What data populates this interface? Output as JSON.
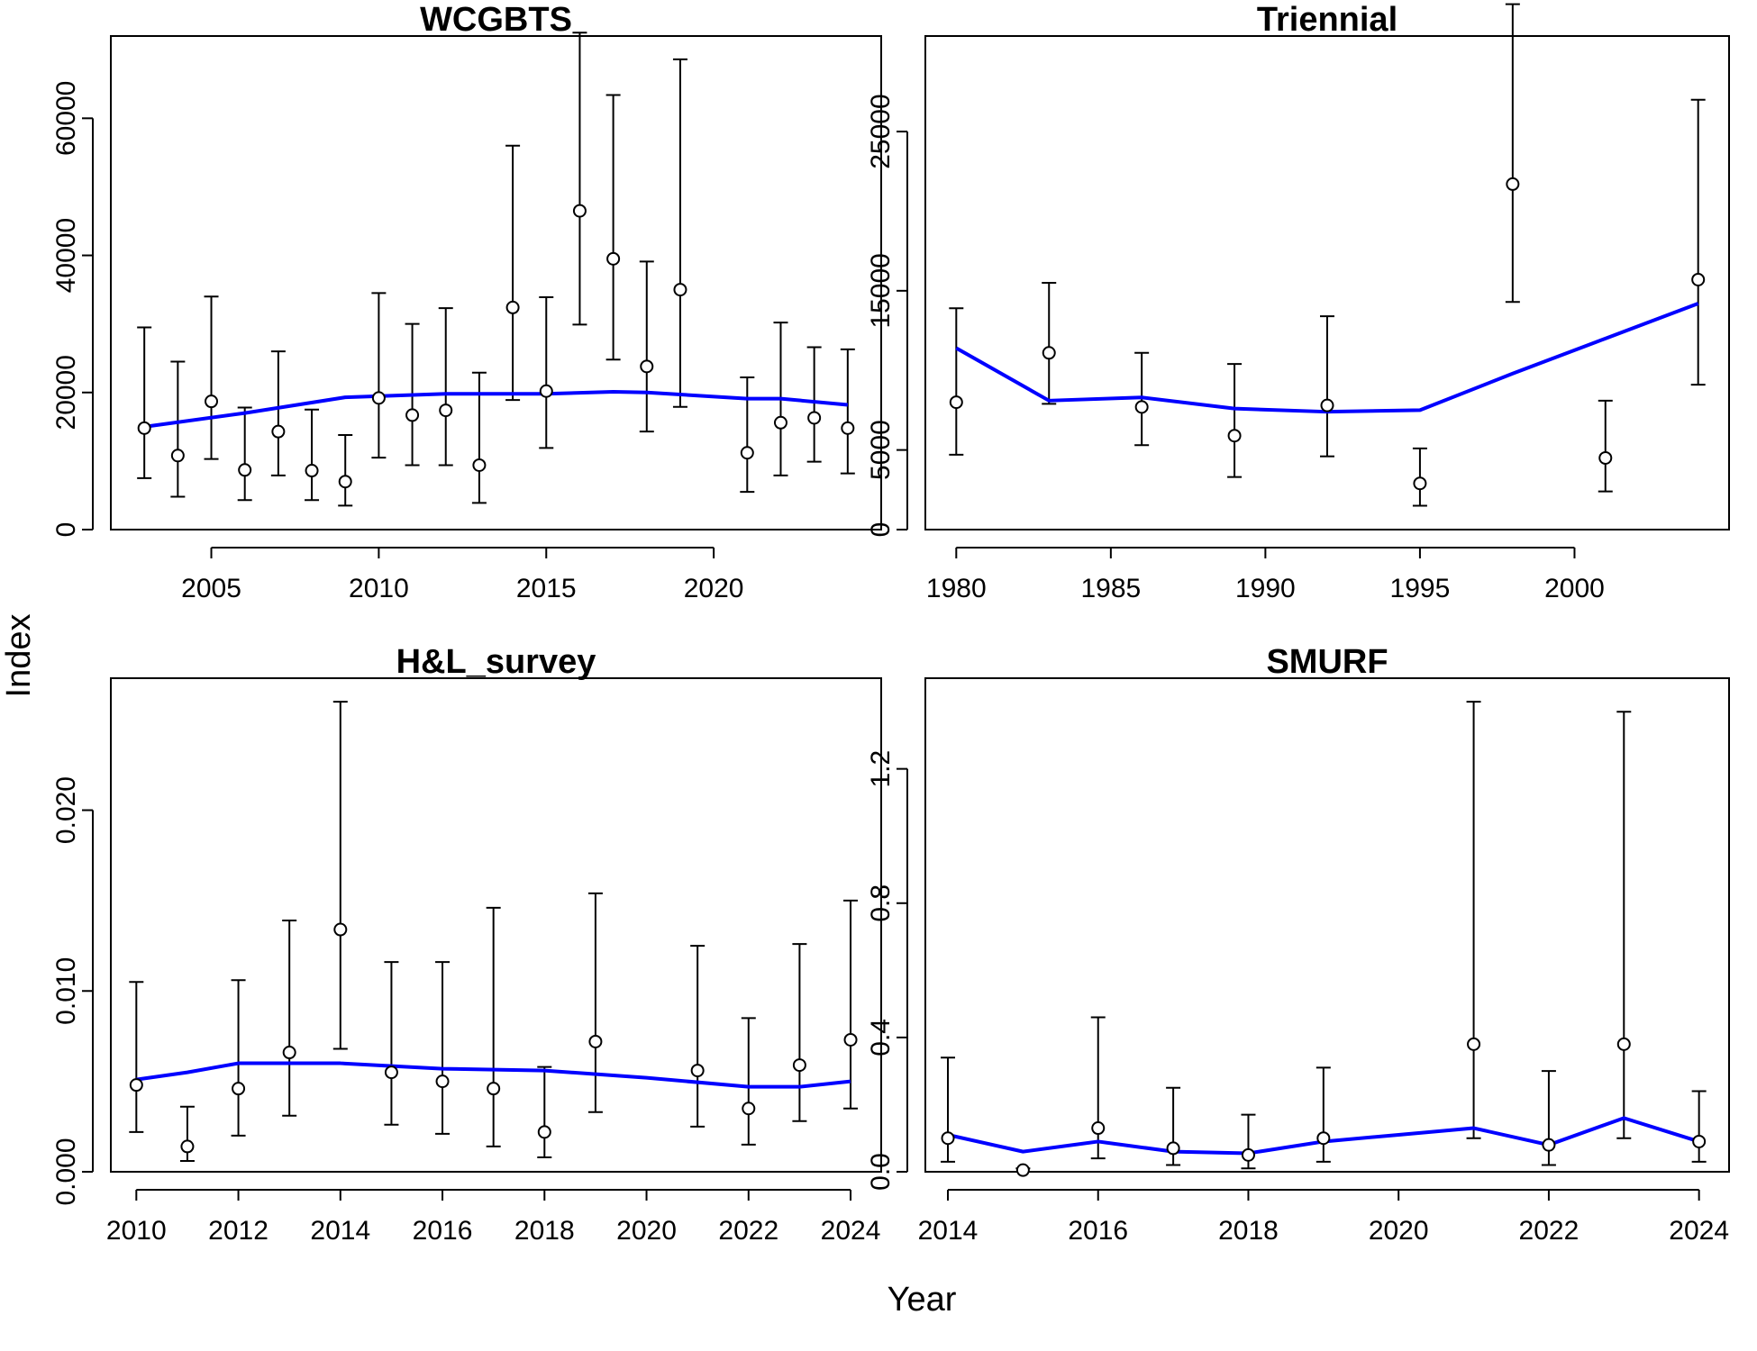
{
  "figure": {
    "xlabel": "Year",
    "ylabel": "Index"
  },
  "chart_data": [
    {
      "type": "scatter",
      "title": "WCGBTS",
      "x_ticks": [
        2005,
        2010,
        2015,
        2020
      ],
      "y_ticks": [
        0,
        20000,
        40000,
        60000
      ],
      "y_tick_labels": [
        "0",
        "20000",
        "40000",
        "60000"
      ],
      "xlim": [
        2002,
        2025
      ],
      "ylim": [
        0,
        72000
      ],
      "points": [
        {
          "x": 2003,
          "y": 14800,
          "lo": 7500,
          "hi": 29500
        },
        {
          "x": 2004,
          "y": 10800,
          "lo": 4800,
          "hi": 24500
        },
        {
          "x": 2005,
          "y": 18700,
          "lo": 10300,
          "hi": 34000
        },
        {
          "x": 2006,
          "y": 8700,
          "lo": 4300,
          "hi": 17800
        },
        {
          "x": 2007,
          "y": 14300,
          "lo": 7900,
          "hi": 26000
        },
        {
          "x": 2008,
          "y": 8600,
          "lo": 4300,
          "hi": 17500
        },
        {
          "x": 2009,
          "y": 7000,
          "lo": 3500,
          "hi": 13800
        },
        {
          "x": 2010,
          "y": 19200,
          "lo": 10500,
          "hi": 34500
        },
        {
          "x": 2011,
          "y": 16700,
          "lo": 9400,
          "hi": 30000
        },
        {
          "x": 2012,
          "y": 17400,
          "lo": 9400,
          "hi": 32300
        },
        {
          "x": 2013,
          "y": 9400,
          "lo": 3900,
          "hi": 22900
        },
        {
          "x": 2014,
          "y": 32400,
          "lo": 18900,
          "hi": 56000
        },
        {
          "x": 2015,
          "y": 20200,
          "lo": 11900,
          "hi": 33900
        },
        {
          "x": 2016,
          "y": 46500,
          "lo": 29900,
          "hi": 72500
        },
        {
          "x": 2017,
          "y": 39500,
          "lo": 24800,
          "hi": 63400
        },
        {
          "x": 2018,
          "y": 23800,
          "lo": 14300,
          "hi": 39100
        },
        {
          "x": 2019,
          "y": 35000,
          "lo": 17900,
          "hi": 68600
        },
        {
          "x": 2021,
          "y": 11200,
          "lo": 5500,
          "hi": 22200
        },
        {
          "x": 2022,
          "y": 15600,
          "lo": 7900,
          "hi": 30200
        },
        {
          "x": 2023,
          "y": 16300,
          "lo": 9900,
          "hi": 26600
        },
        {
          "x": 2024,
          "y": 14800,
          "lo": 8200,
          "hi": 26300
        }
      ],
      "fit": {
        "x": [
          2003,
          2006,
          2009,
          2012,
          2015,
          2017,
          2018,
          2021,
          2022,
          2024
        ],
        "y": [
          15000,
          17000,
          19300,
          19800,
          19800,
          20100,
          20000,
          19100,
          19100,
          18200
        ]
      }
    },
    {
      "type": "scatter",
      "title": "Triennial",
      "x_ticks": [
        1980,
        1985,
        1990,
        1995,
        2000
      ],
      "y_ticks": [
        0,
        5000,
        15000,
        25000
      ],
      "y_tick_labels": [
        "0",
        "5000",
        "15000",
        "25000"
      ],
      "xlim": [
        1979,
        2005
      ],
      "ylim": [
        0,
        31000
      ],
      "points": [
        {
          "x": 1980,
          "y": 8000,
          "lo": 4700,
          "hi": 13900
        },
        {
          "x": 1983,
          "y": 11100,
          "lo": 7900,
          "hi": 15500
        },
        {
          "x": 1986,
          "y": 7700,
          "lo": 5300,
          "hi": 11100
        },
        {
          "x": 1989,
          "y": 5900,
          "lo": 3300,
          "hi": 10400
        },
        {
          "x": 1992,
          "y": 7800,
          "lo": 4600,
          "hi": 13400
        },
        {
          "x": 1995,
          "y": 2900,
          "lo": 1500,
          "hi": 5100
        },
        {
          "x": 1998,
          "y": 21700,
          "lo": 14300,
          "hi": 33000
        },
        {
          "x": 2001,
          "y": 4500,
          "lo": 2400,
          "hi": 8100
        },
        {
          "x": 2004,
          "y": 15700,
          "lo": 9100,
          "hi": 27000
        }
      ],
      "fit": {
        "x": [
          1980,
          1983,
          1986,
          1989,
          1992,
          1995,
          1998,
          2001,
          2004
        ],
        "y": [
          11400,
          8100,
          8300,
          7600,
          7400,
          7500,
          9800,
          12000,
          14200
        ]
      }
    },
    {
      "type": "scatter",
      "title": "H&L_survey",
      "x_ticks": [
        2010,
        2012,
        2014,
        2016,
        2018,
        2020,
        2022,
        2024
      ],
      "y_ticks": [
        0,
        0.01,
        0.02
      ],
      "y_tick_labels": [
        "0.000",
        "0.010",
        "0.020"
      ],
      "xlim": [
        2009.5,
        2024.6
      ],
      "ylim": [
        0,
        0.0273
      ],
      "points": [
        {
          "x": 2010,
          "y": 0.0048,
          "lo": 0.0022,
          "hi": 0.0105
        },
        {
          "x": 2011,
          "y": 0.0014,
          "lo": 0.0006,
          "hi": 0.0036
        },
        {
          "x": 2012,
          "y": 0.0046,
          "lo": 0.002,
          "hi": 0.0106
        },
        {
          "x": 2013,
          "y": 0.0066,
          "lo": 0.0031,
          "hi": 0.0139
        },
        {
          "x": 2014,
          "y": 0.0134,
          "lo": 0.0068,
          "hi": 0.026
        },
        {
          "x": 2015,
          "y": 0.0055,
          "lo": 0.0026,
          "hi": 0.0116
        },
        {
          "x": 2016,
          "y": 0.005,
          "lo": 0.0021,
          "hi": 0.0116
        },
        {
          "x": 2017,
          "y": 0.0046,
          "lo": 0.0014,
          "hi": 0.0146
        },
        {
          "x": 2018,
          "y": 0.0022,
          "lo": 0.0008,
          "hi": 0.0058
        },
        {
          "x": 2019,
          "y": 0.0072,
          "lo": 0.0033,
          "hi": 0.0154
        },
        {
          "x": 2021,
          "y": 0.0056,
          "lo": 0.0025,
          "hi": 0.0125
        },
        {
          "x": 2022,
          "y": 0.0035,
          "lo": 0.0015,
          "hi": 0.0085
        },
        {
          "x": 2023,
          "y": 0.0059,
          "lo": 0.0028,
          "hi": 0.0126
        },
        {
          "x": 2024,
          "y": 0.0073,
          "lo": 0.0035,
          "hi": 0.015
        }
      ],
      "fit": {
        "x": [
          2010,
          2011,
          2012,
          2014,
          2016,
          2018,
          2020,
          2022,
          2023,
          2024
        ],
        "y": [
          0.0051,
          0.0055,
          0.006,
          0.006,
          0.0057,
          0.0056,
          0.0052,
          0.0047,
          0.0047,
          0.005
        ]
      }
    },
    {
      "type": "scatter",
      "title": "SMURF",
      "x_ticks": [
        2014,
        2016,
        2018,
        2020,
        2022,
        2024
      ],
      "y_ticks": [
        0,
        0.4,
        0.8,
        1.2
      ],
      "y_tick_labels": [
        "0.0",
        "0.4",
        "0.8",
        "1.2"
      ],
      "xlim": [
        2013.7,
        2024.4
      ],
      "ylim": [
        0,
        1.47
      ],
      "points": [
        {
          "x": 2014,
          "y": 0.1,
          "lo": 0.03,
          "hi": 0.34
        },
        {
          "x": 2015,
          "y": 0.005,
          "lo": 0.0,
          "hi": 0.01
        },
        {
          "x": 2016,
          "y": 0.13,
          "lo": 0.04,
          "hi": 0.46
        },
        {
          "x": 2017,
          "y": 0.07,
          "lo": 0.02,
          "hi": 0.25
        },
        {
          "x": 2018,
          "y": 0.05,
          "lo": 0.01,
          "hi": 0.17
        },
        {
          "x": 2019,
          "y": 0.1,
          "lo": 0.03,
          "hi": 0.31
        },
        {
          "x": 2021,
          "y": 0.38,
          "lo": 0.1,
          "hi": 1.4
        },
        {
          "x": 2022,
          "y": 0.08,
          "lo": 0.02,
          "hi": 0.3
        },
        {
          "x": 2023,
          "y": 0.38,
          "lo": 0.1,
          "hi": 1.37
        },
        {
          "x": 2024,
          "y": 0.09,
          "lo": 0.03,
          "hi": 0.24
        }
      ],
      "fit": {
        "x": [
          2014,
          2015,
          2016,
          2017,
          2018,
          2019,
          2020,
          2021,
          2022,
          2023,
          2024
        ],
        "y": [
          0.11,
          0.06,
          0.09,
          0.06,
          0.055,
          0.09,
          0.11,
          0.13,
          0.08,
          0.16,
          0.09
        ]
      }
    }
  ]
}
